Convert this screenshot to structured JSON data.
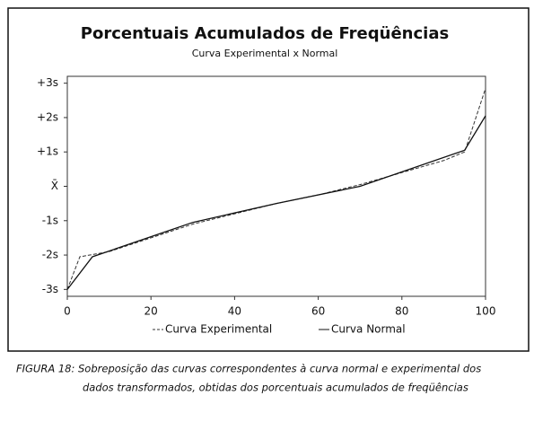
{
  "chart_data": {
    "type": "line",
    "title": "Porcentuais Acumulados de Freqüências",
    "subtitle": "Curva Experimental x Normal",
    "series": [
      {
        "name": "Curva Experimental",
        "color": "#333333",
        "dashed": true,
        "x": [
          0,
          3,
          10,
          20,
          30,
          40,
          50,
          60,
          70,
          80,
          90,
          95,
          100
        ],
        "values": [
          -3,
          -2.05,
          -1.9,
          -1.5,
          -1.1,
          -0.8,
          -0.5,
          -0.25,
          0.05,
          0.4,
          0.75,
          1.0,
          2.85
        ]
      },
      {
        "name": "Curva Normal",
        "color": "#111111",
        "dashed": false,
        "x": [
          0,
          6,
          30,
          50,
          70,
          95,
          100
        ],
        "values": [
          -3,
          -2.05,
          -1.05,
          -0.5,
          0,
          1.05,
          2.05
        ]
      }
    ],
    "xlim": [
      0,
      100
    ],
    "xticks": [
      0,
      20,
      40,
      60,
      80,
      100
    ],
    "ylim": [
      -3.2,
      3.2
    ],
    "yticks": [
      {
        "value": 3,
        "label": "+3s"
      },
      {
        "value": 2,
        "label": "+2s"
      },
      {
        "value": 1,
        "label": "+1s"
      },
      {
        "value": 0,
        "label": "X̄"
      },
      {
        "value": -1,
        "label": "-1s"
      },
      {
        "value": -2,
        "label": "-2s"
      },
      {
        "value": -3,
        "label": "-3s"
      }
    ],
    "grid": false
  },
  "caption": [
    "FIGURA 18: Sobreposição das curvas correspondentes à curva normal e experimental dos",
    "dados transformados, obtidas dos porcentuais acumulados de freqüências"
  ]
}
